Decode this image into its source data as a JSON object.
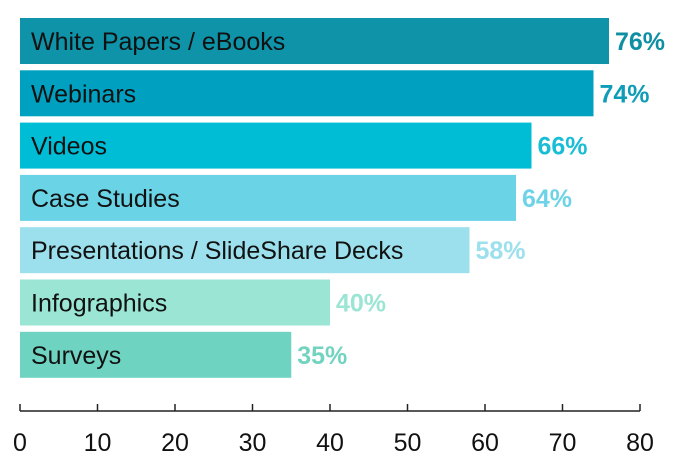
{
  "chart_data": {
    "type": "bar",
    "orientation": "horizontal",
    "categories": [
      "White Papers / eBooks",
      "Webinars",
      "Videos",
      "Case Studies",
      "Presentations / SlideShare Decks",
      "Infographics",
      "Surveys"
    ],
    "values": [
      76,
      74,
      66,
      64,
      58,
      40,
      35
    ],
    "value_labels": [
      "76%",
      "74%",
      "66%",
      "64%",
      "58%",
      "40%",
      "35%"
    ],
    "bar_colors": [
      "#0e93a8",
      "#00a0c1",
      "#00bdd6",
      "#6ad3e6",
      "#9be0ec",
      "#9be5d4",
      "#6fd3c1"
    ],
    "value_label_colors": [
      "#0e8fa3",
      "#0e9cb6",
      "#19bdd6",
      "#6ed3e6",
      "#9be0ec",
      "#9be5d4",
      "#73d3c1"
    ],
    "xlim": [
      0,
      80
    ],
    "xticks": [
      0,
      10,
      20,
      30,
      40,
      50,
      60,
      70,
      80
    ],
    "tick_labels": [
      "0",
      "10",
      "20",
      "30",
      "40",
      "50",
      "60",
      "70",
      "80"
    ],
    "grid": false,
    "legend": "none"
  }
}
